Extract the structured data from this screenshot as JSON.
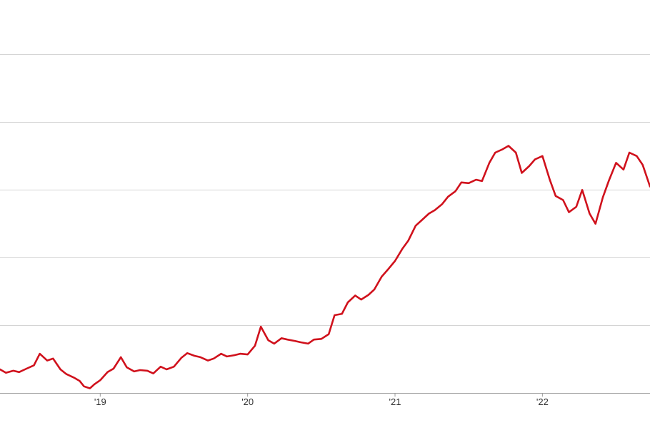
{
  "chart_data": {
    "type": "line",
    "title": "",
    "xlabel": "",
    "ylabel": "",
    "x_ticks": [
      "'19",
      "'20",
      "'21",
      "'22"
    ],
    "x_tick_values": [
      2019.0,
      2020.0,
      2021.0,
      2022.0
    ],
    "xlim": [
      2018.32,
      2022.73
    ],
    "ylim": [
      0,
      5.2
    ],
    "gridlines_y": [
      0.05,
      1.05,
      2.05,
      3.05,
      4.05,
      5.05
    ],
    "y_tick_labels_visible": false,
    "legend": "none",
    "grid": true,
    "series": [
      {
        "color": "#d0111c",
        "x": [
          2018.32,
          2018.36,
          2018.41,
          2018.45,
          2018.5,
          2018.55,
          2018.59,
          2018.64,
          2018.68,
          2018.73,
          2018.77,
          2018.82,
          2018.86,
          2018.89,
          2018.93,
          2018.96,
          2019.0,
          2019.05,
          2019.09,
          2019.14,
          2019.18,
          2019.23,
          2019.27,
          2019.32,
          2019.36,
          2019.41,
          2019.45,
          2019.5,
          2019.55,
          2019.59,
          2019.64,
          2019.68,
          2019.73,
          2019.77,
          2019.82,
          2019.86,
          2019.91,
          2019.95,
          2020.0,
          2020.05,
          2020.09,
          2020.14,
          2020.18,
          2020.23,
          2020.27,
          2020.32,
          2020.36,
          2020.41,
          2020.45,
          2020.5,
          2020.55,
          2020.59,
          2020.64,
          2020.68,
          2020.73,
          2020.77,
          2020.82,
          2020.86,
          2020.91,
          2020.95,
          2021.0,
          2021.05,
          2021.09,
          2021.14,
          2021.18,
          2021.23,
          2021.27,
          2021.32,
          2021.36,
          2021.41,
          2021.45,
          2021.5,
          2021.55,
          2021.59,
          2021.64,
          2021.68,
          2021.73,
          2021.77,
          2021.82,
          2021.86,
          2021.91,
          2021.95,
          2022.0,
          2022.05,
          2022.09,
          2022.14,
          2022.18,
          2022.23,
          2022.27,
          2022.32,
          2022.36,
          2022.41,
          2022.45,
          2022.5,
          2022.55,
          2022.59,
          2022.64,
          2022.68,
          2022.73
        ],
        "y": [
          0.4,
          0.35,
          0.38,
          0.36,
          0.41,
          0.46,
          0.63,
          0.53,
          0.56,
          0.4,
          0.33,
          0.28,
          0.23,
          0.15,
          0.12,
          0.18,
          0.24,
          0.36,
          0.41,
          0.58,
          0.43,
          0.37,
          0.39,
          0.38,
          0.34,
          0.44,
          0.4,
          0.44,
          0.57,
          0.64,
          0.6,
          0.58,
          0.53,
          0.56,
          0.63,
          0.59,
          0.61,
          0.63,
          0.62,
          0.75,
          1.03,
          0.83,
          0.78,
          0.86,
          0.84,
          0.82,
          0.8,
          0.78,
          0.84,
          0.85,
          0.92,
          1.2,
          1.22,
          1.39,
          1.49,
          1.43,
          1.5,
          1.58,
          1.77,
          1.87,
          2.0,
          2.18,
          2.3,
          2.52,
          2.6,
          2.7,
          2.75,
          2.84,
          2.95,
          3.03,
          3.16,
          3.15,
          3.2,
          3.18,
          3.45,
          3.6,
          3.65,
          3.7,
          3.6,
          3.3,
          3.4,
          3.5,
          3.55,
          3.2,
          2.96,
          2.9,
          2.72,
          2.8,
          3.05,
          2.7,
          2.55,
          2.94,
          3.18,
          3.45,
          3.35,
          3.6,
          3.55,
          3.42,
          3.1
        ]
      }
    ]
  }
}
